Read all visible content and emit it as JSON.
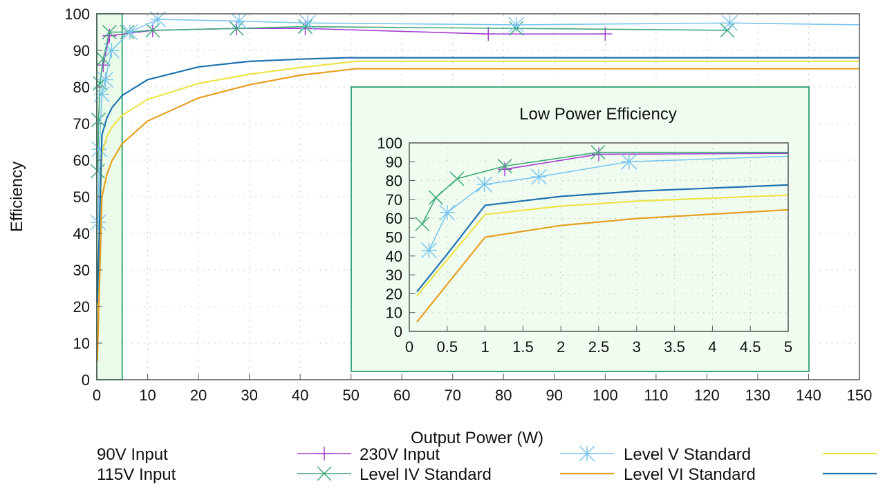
{
  "chart_data": [
    {
      "type": "line",
      "title": "",
      "xlabel": "Output Power (W)",
      "ylabel": "Efficiency",
      "xlim": [
        0,
        150
      ],
      "ylim": [
        0,
        100
      ],
      "xticks": [
        "0",
        "10",
        "20",
        "30",
        "40",
        "50",
        "60",
        "70",
        "80",
        "90",
        "100",
        "110",
        "120",
        "130",
        "140",
        "150"
      ],
      "yticks": [
        "0",
        "10",
        "20",
        "30",
        "40",
        "50",
        "60",
        "70",
        "80",
        "90",
        "100"
      ],
      "grid": true,
      "highlight_region_x": [
        0,
        5
      ],
      "legend_position": "bottom",
      "series": [
        {
          "name": "90V Input",
          "color": "#a23fd0",
          "marker": "plus",
          "x": [
            1.26,
            2.5,
            11,
            27.5,
            41,
            77,
            100
          ],
          "y": [
            86,
            94,
            95.5,
            96,
            96,
            94.5,
            94.5
          ]
        },
        {
          "name": "115V Input",
          "color": "#3fa87a",
          "marker": "cross",
          "x": [
            0.17,
            0.35,
            0.63,
            1.26,
            2.49,
            6,
            11,
            27.5,
            41,
            82.5,
            124
          ],
          "y": [
            57,
            71,
            81,
            87.7,
            95,
            95,
            95.5,
            96,
            96.5,
            96,
            95.5
          ]
        },
        {
          "name": "230V Input",
          "color": "#7cc6ee",
          "marker": "star",
          "x": [
            0.26,
            0.5,
            0.99,
            1.71,
            2.9,
            6.5,
            12,
            28,
            41.5,
            82.5,
            124.5,
            150
          ],
          "y": [
            43,
            63,
            78,
            82,
            90,
            95,
            98.5,
            98,
            97.5,
            97,
            97.5,
            97
          ]
        },
        {
          "name": "Level V Standard",
          "color": "#eee24a",
          "marker": "none",
          "x": [
            0.1,
            0.5,
            1,
            2,
            3,
            5,
            10,
            20,
            30,
            40,
            51,
            150
          ],
          "y": [
            18.8,
            38,
            62,
            66.5,
            69.1,
            72.3,
            76.6,
            80.95,
            83.5,
            85.3,
            87,
            87
          ]
        },
        {
          "name": "Level IV Standard",
          "color": "#e69f20",
          "marker": "none",
          "x": [
            0.1,
            0.5,
            1,
            2,
            3,
            5,
            10,
            20,
            30,
            40,
            51,
            150
          ],
          "y": [
            5,
            25,
            50,
            56.2,
            59.9,
            64.5,
            70.7,
            77,
            80.6,
            83.2,
            85,
            85
          ]
        },
        {
          "name": "Level VI Standard",
          "color": "#1f72b0",
          "marker": "none",
          "x": [
            0.1,
            0.5,
            1,
            2,
            3,
            5,
            10,
            20,
            30,
            40,
            49,
            150
          ],
          "y": [
            21,
            41,
            66.9,
            71.6,
            74.4,
            77.7,
            82,
            85.5,
            87,
            87.6,
            88,
            88
          ]
        }
      ]
    },
    {
      "type": "line",
      "title": "Low Power Efficiency",
      "xlim": [
        0,
        5
      ],
      "ylim": [
        0,
        100
      ],
      "xticks": [
        "0",
        "0.5",
        "1",
        "1.5",
        "2",
        "2.5",
        "3",
        "3.5",
        "4",
        "4.5",
        "5"
      ],
      "yticks": [
        "0",
        "10",
        "20",
        "30",
        "40",
        "50",
        "60",
        "70",
        "80",
        "90",
        "100"
      ],
      "grid": true,
      "series_ref": "same as main chart, shown for 0–5 W"
    }
  ]
}
